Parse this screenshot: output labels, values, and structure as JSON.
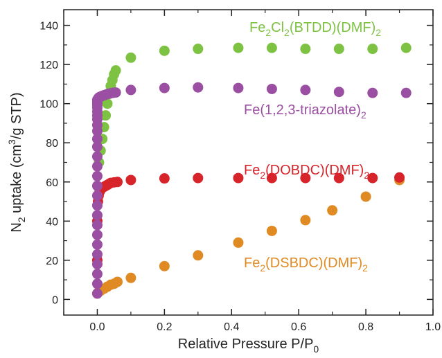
{
  "chart_data": {
    "type": "scatter",
    "xlabel": {
      "main": "Relative Pressure P/P",
      "sub": "0"
    },
    "ylabel": {
      "pre": "N",
      "sub1": "2",
      "mid": " uptake (cm",
      "sup": "3",
      "post": "/g STP)"
    },
    "xlim": [
      -0.1,
      1.0
    ],
    "ylim": [
      -8,
      148
    ],
    "x_ticks": [
      0.0,
      0.2,
      0.4,
      0.6,
      0.8,
      1.0
    ],
    "x_tick_labels": [
      "0.0",
      "0.2",
      "0.4",
      "0.6",
      "0.8",
      "1.0"
    ],
    "y_ticks": [
      0,
      20,
      40,
      60,
      80,
      100,
      120,
      140
    ],
    "y_tick_labels": [
      "0",
      "20",
      "40",
      "60",
      "80",
      "100",
      "120",
      "140"
    ],
    "grid": false,
    "series": [
      {
        "name": "Fe2(DSBDC)(DMF)2",
        "label_parts": [
          {
            "t": "Fe"
          },
          {
            "t": "2",
            "sub": true
          },
          {
            "t": "(DSBDC)(DMF)"
          },
          {
            "t": "2",
            "sub": true
          }
        ],
        "color": "#E08A24",
        "x": [
          0.0,
          0.005,
          0.01,
          0.02,
          0.03,
          0.04,
          0.05,
          0.06,
          0.1,
          0.2,
          0.3,
          0.42,
          0.52,
          0.62,
          0.7,
          0.8,
          0.9
        ],
        "y": [
          3,
          4,
          4.5,
          5.5,
          6.5,
          7.5,
          8,
          9,
          11,
          17,
          22.5,
          29,
          35,
          40.5,
          45.5,
          52.5,
          61
        ]
      },
      {
        "name": "Fe2(DOBDC)(DMF)2",
        "label_parts": [
          {
            "t": "Fe"
          },
          {
            "t": "2",
            "sub": true
          },
          {
            "t": "(DOBDC)(DMF)"
          },
          {
            "t": "2",
            "sub": true
          }
        ],
        "color": "#D7232A",
        "x": [
          0.0,
          0.0,
          0.002,
          0.004,
          0.007,
          0.01,
          0.015,
          0.02,
          0.025,
          0.03,
          0.035,
          0.04,
          0.05,
          0.06,
          0.1,
          0.2,
          0.3,
          0.42,
          0.52,
          0.62,
          0.72,
          0.82,
          0.9
        ],
        "y": [
          20,
          40,
          50,
          53,
          55,
          56,
          57,
          57.5,
          58,
          58.5,
          59,
          59.5,
          59.8,
          60,
          61,
          61.8,
          62,
          62,
          62,
          62,
          62,
          62,
          62.3
        ]
      },
      {
        "name": "Fe2Cl2(BTDD)(DMF)2",
        "label_parts": [
          {
            "t": "Fe"
          },
          {
            "t": "2",
            "sub": true
          },
          {
            "t": "Cl"
          },
          {
            "t": "2",
            "sub": true
          },
          {
            "t": "(BTDD)(DMF)"
          },
          {
            "t": "2",
            "sub": true
          }
        ],
        "color": "#7DC242",
        "x": [
          0.005,
          0.01,
          0.015,
          0.02,
          0.025,
          0.03,
          0.035,
          0.04,
          0.045,
          0.05,
          0.055,
          0.1,
          0.2,
          0.3,
          0.42,
          0.52,
          0.62,
          0.72,
          0.82,
          0.92
        ],
        "y": [
          70,
          76,
          82,
          88,
          94,
          100,
          105,
          109,
          112,
          115,
          117,
          123.5,
          127,
          128,
          128.5,
          128.5,
          128,
          128,
          128,
          128.5
        ]
      },
      {
        "name": "Fe(1,2,3-triazolate)2",
        "label_parts": [
          {
            "t": "Fe(1,2,3-triazolate)"
          },
          {
            "t": "2",
            "sub": true
          }
        ],
        "color": "#9B4FA2",
        "x": [
          0.0,
          0.0,
          0.0,
          0.0,
          0.0,
          0.0,
          0.0,
          0.0,
          0.0,
          0.0,
          0.0,
          0.0,
          0.0,
          0.0,
          0.0,
          0.0,
          0.0,
          0.0,
          0.0,
          0.0,
          0.0,
          0.0,
          0.0,
          0.0,
          0.0,
          0.0,
          0.0,
          0.002,
          0.004,
          0.006,
          0.01,
          0.015,
          0.02,
          0.025,
          0.03,
          0.035,
          0.04,
          0.045,
          0.05,
          0.055,
          0.1,
          0.2,
          0.3,
          0.42,
          0.52,
          0.62,
          0.72,
          0.82,
          0.92
        ],
        "y": [
          3,
          8,
          13,
          18,
          23,
          28,
          33,
          38,
          43,
          48,
          53,
          58,
          63,
          68,
          73,
          78,
          82,
          86,
          89,
          92,
          94,
          96,
          98,
          99.5,
          100.5,
          101.5,
          102,
          102.5,
          103,
          103.3,
          103.6,
          104,
          104.3,
          104.6,
          104.9,
          105.1,
          105.3,
          105.5,
          105.6,
          105.7,
          107,
          108,
          108.3,
          108,
          107.5,
          107,
          106,
          105.5,
          105.5
        ]
      }
    ],
    "legend_placement": "inline labels near curves"
  }
}
